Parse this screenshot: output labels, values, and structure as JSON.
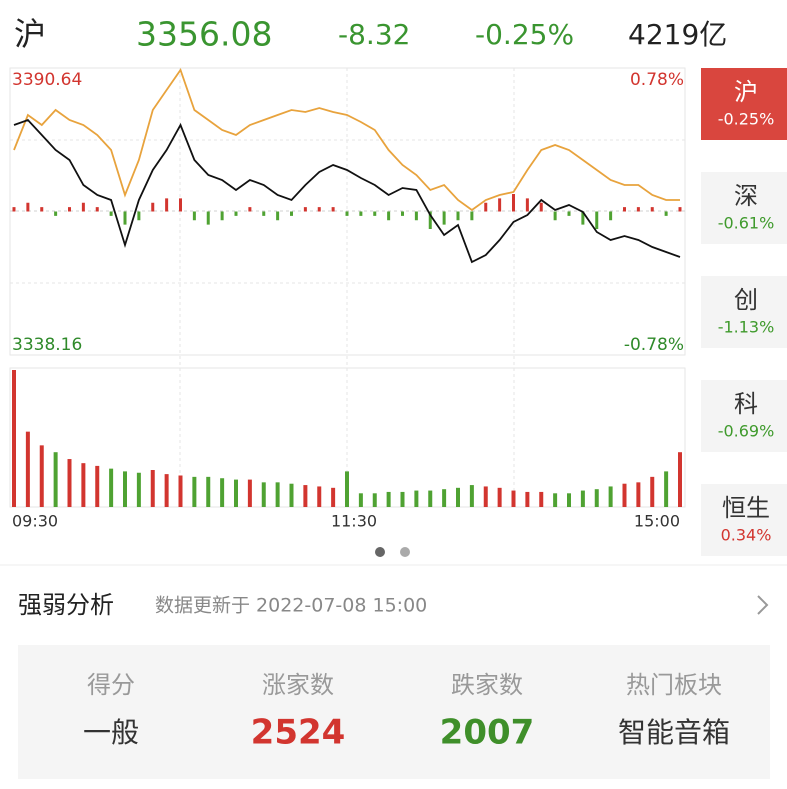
{
  "header": {
    "market": "沪",
    "price": "3356.08",
    "change": "-8.32",
    "change_pct": "-0.25%",
    "turnover": "4219亿"
  },
  "chart": {
    "type": "line",
    "ylim": [
      3338.16,
      3390.64
    ],
    "yticks": [
      3338.16,
      3390.64
    ],
    "y2lim": [
      -0.78,
      0.78
    ],
    "y2ticks": [
      {
        "value": -0.78,
        "label": "-0.78%"
      },
      {
        "value": 0.78,
        "label": "0.78%"
      }
    ],
    "x_labels": [
      "09:30",
      "11:30",
      "15:00"
    ],
    "up_color": "#d2352f",
    "down_color": "#4fa232",
    "series": [
      {
        "color": "#111111",
        "values": [
          3380.22,
          3381.13,
          3378.39,
          3375.65,
          3373.82,
          3369.25,
          3367.42,
          3366.5,
          3358.27,
          3366.5,
          3371.99,
          3375.65,
          3380.22,
          3373.82,
          3371.07,
          3370.16,
          3368.33,
          3370.16,
          3369.25,
          3367.42,
          3366.5,
          3369.25,
          3371.62,
          3372.9,
          3371.99,
          3370.53,
          3369.25,
          3367.42,
          3368.7,
          3368.33,
          3363.76,
          3360.1,
          3361.93,
          3355.17,
          3356.45,
          3359.19,
          3362.48,
          3363.76,
          3366.5,
          3364.67,
          3365.59,
          3364.31,
          3360.65,
          3359.19,
          3359.92,
          3359.19,
          3357.91,
          3356.99,
          3356.08
        ]
      },
      {
        "color": "#e8a33d",
        "values": [
          3375.64,
          3382.05,
          3380.22,
          3382.96,
          3381.13,
          3380.22,
          3378.39,
          3375.64,
          3367.42,
          3373.82,
          3382.96,
          3386.62,
          3390.27,
          3382.96,
          3381.13,
          3379.3,
          3378.39,
          3380.22,
          3381.13,
          3382.05,
          3382.96,
          3382.59,
          3383.33,
          3382.59,
          3382.05,
          3380.77,
          3379.3,
          3375.64,
          3372.9,
          3371.07,
          3368.33,
          3369.25,
          3366.5,
          3364.67,
          3366.5,
          3367.42,
          3367.97,
          3371.99,
          3375.64,
          3376.56,
          3375.64,
          3373.82,
          3371.99,
          3370.16,
          3369.25,
          3369.25,
          3367.42,
          3366.5,
          3366.5
        ]
      }
    ],
    "diff_bars": [
      1,
      2,
      1,
      -1,
      1,
      2,
      1,
      -1,
      -3,
      -2,
      2,
      3,
      3,
      -2,
      -3,
      -2,
      -1,
      1,
      -1,
      -2,
      -1,
      1,
      1,
      1,
      -1,
      -1,
      -1,
      -2,
      -1,
      -2,
      -4,
      -3,
      -2,
      -2,
      2,
      3,
      4,
      3,
      2,
      -2,
      -1,
      -3,
      -4,
      -2,
      1,
      1,
      1,
      -1,
      1
    ],
    "volume": [
      100,
      55,
      45,
      40,
      35,
      32,
      30,
      28,
      26,
      25,
      27,
      24,
      23,
      22,
      22,
      21,
      20,
      20,
      18,
      18,
      17,
      16,
      15,
      14,
      26,
      10,
      10,
      11,
      11,
      12,
      12,
      13,
      14,
      16,
      15,
      14,
      12,
      11,
      11,
      10,
      10,
      12,
      13,
      15,
      17,
      18,
      22,
      26,
      40
    ]
  },
  "tabs": [
    {
      "name": "沪",
      "change": "-0.25%",
      "color": "#ffffff",
      "background": "#d9463e"
    },
    {
      "name": "深",
      "change": "-0.61%",
      "color": "#3f9a2c",
      "background": "#f4f4f4"
    },
    {
      "name": "创",
      "change": "-1.13%",
      "color": "#3f9a2c",
      "background": "#f4f4f4"
    },
    {
      "name": "科",
      "change": "-0.69%",
      "color": "#3f9a2c",
      "background": "#f4f4f4"
    },
    {
      "name": "恒生",
      "change": "0.34%",
      "color": "#d2352f",
      "background": "#f4f4f4"
    }
  ],
  "analysis": {
    "title": "强弱分析",
    "updated": "数据更新于 2022-07-08 15:00",
    "stats": [
      {
        "label": "得分",
        "value": "一般",
        "color": "#333333"
      },
      {
        "label": "涨家数",
        "value": 2524,
        "color": "#d2352f"
      },
      {
        "label": "跌家数",
        "value": 2007,
        "color": "#3f8f2a"
      },
      {
        "label": "热门板块",
        "value": "智能音箱",
        "color": "#333333"
      }
    ]
  }
}
